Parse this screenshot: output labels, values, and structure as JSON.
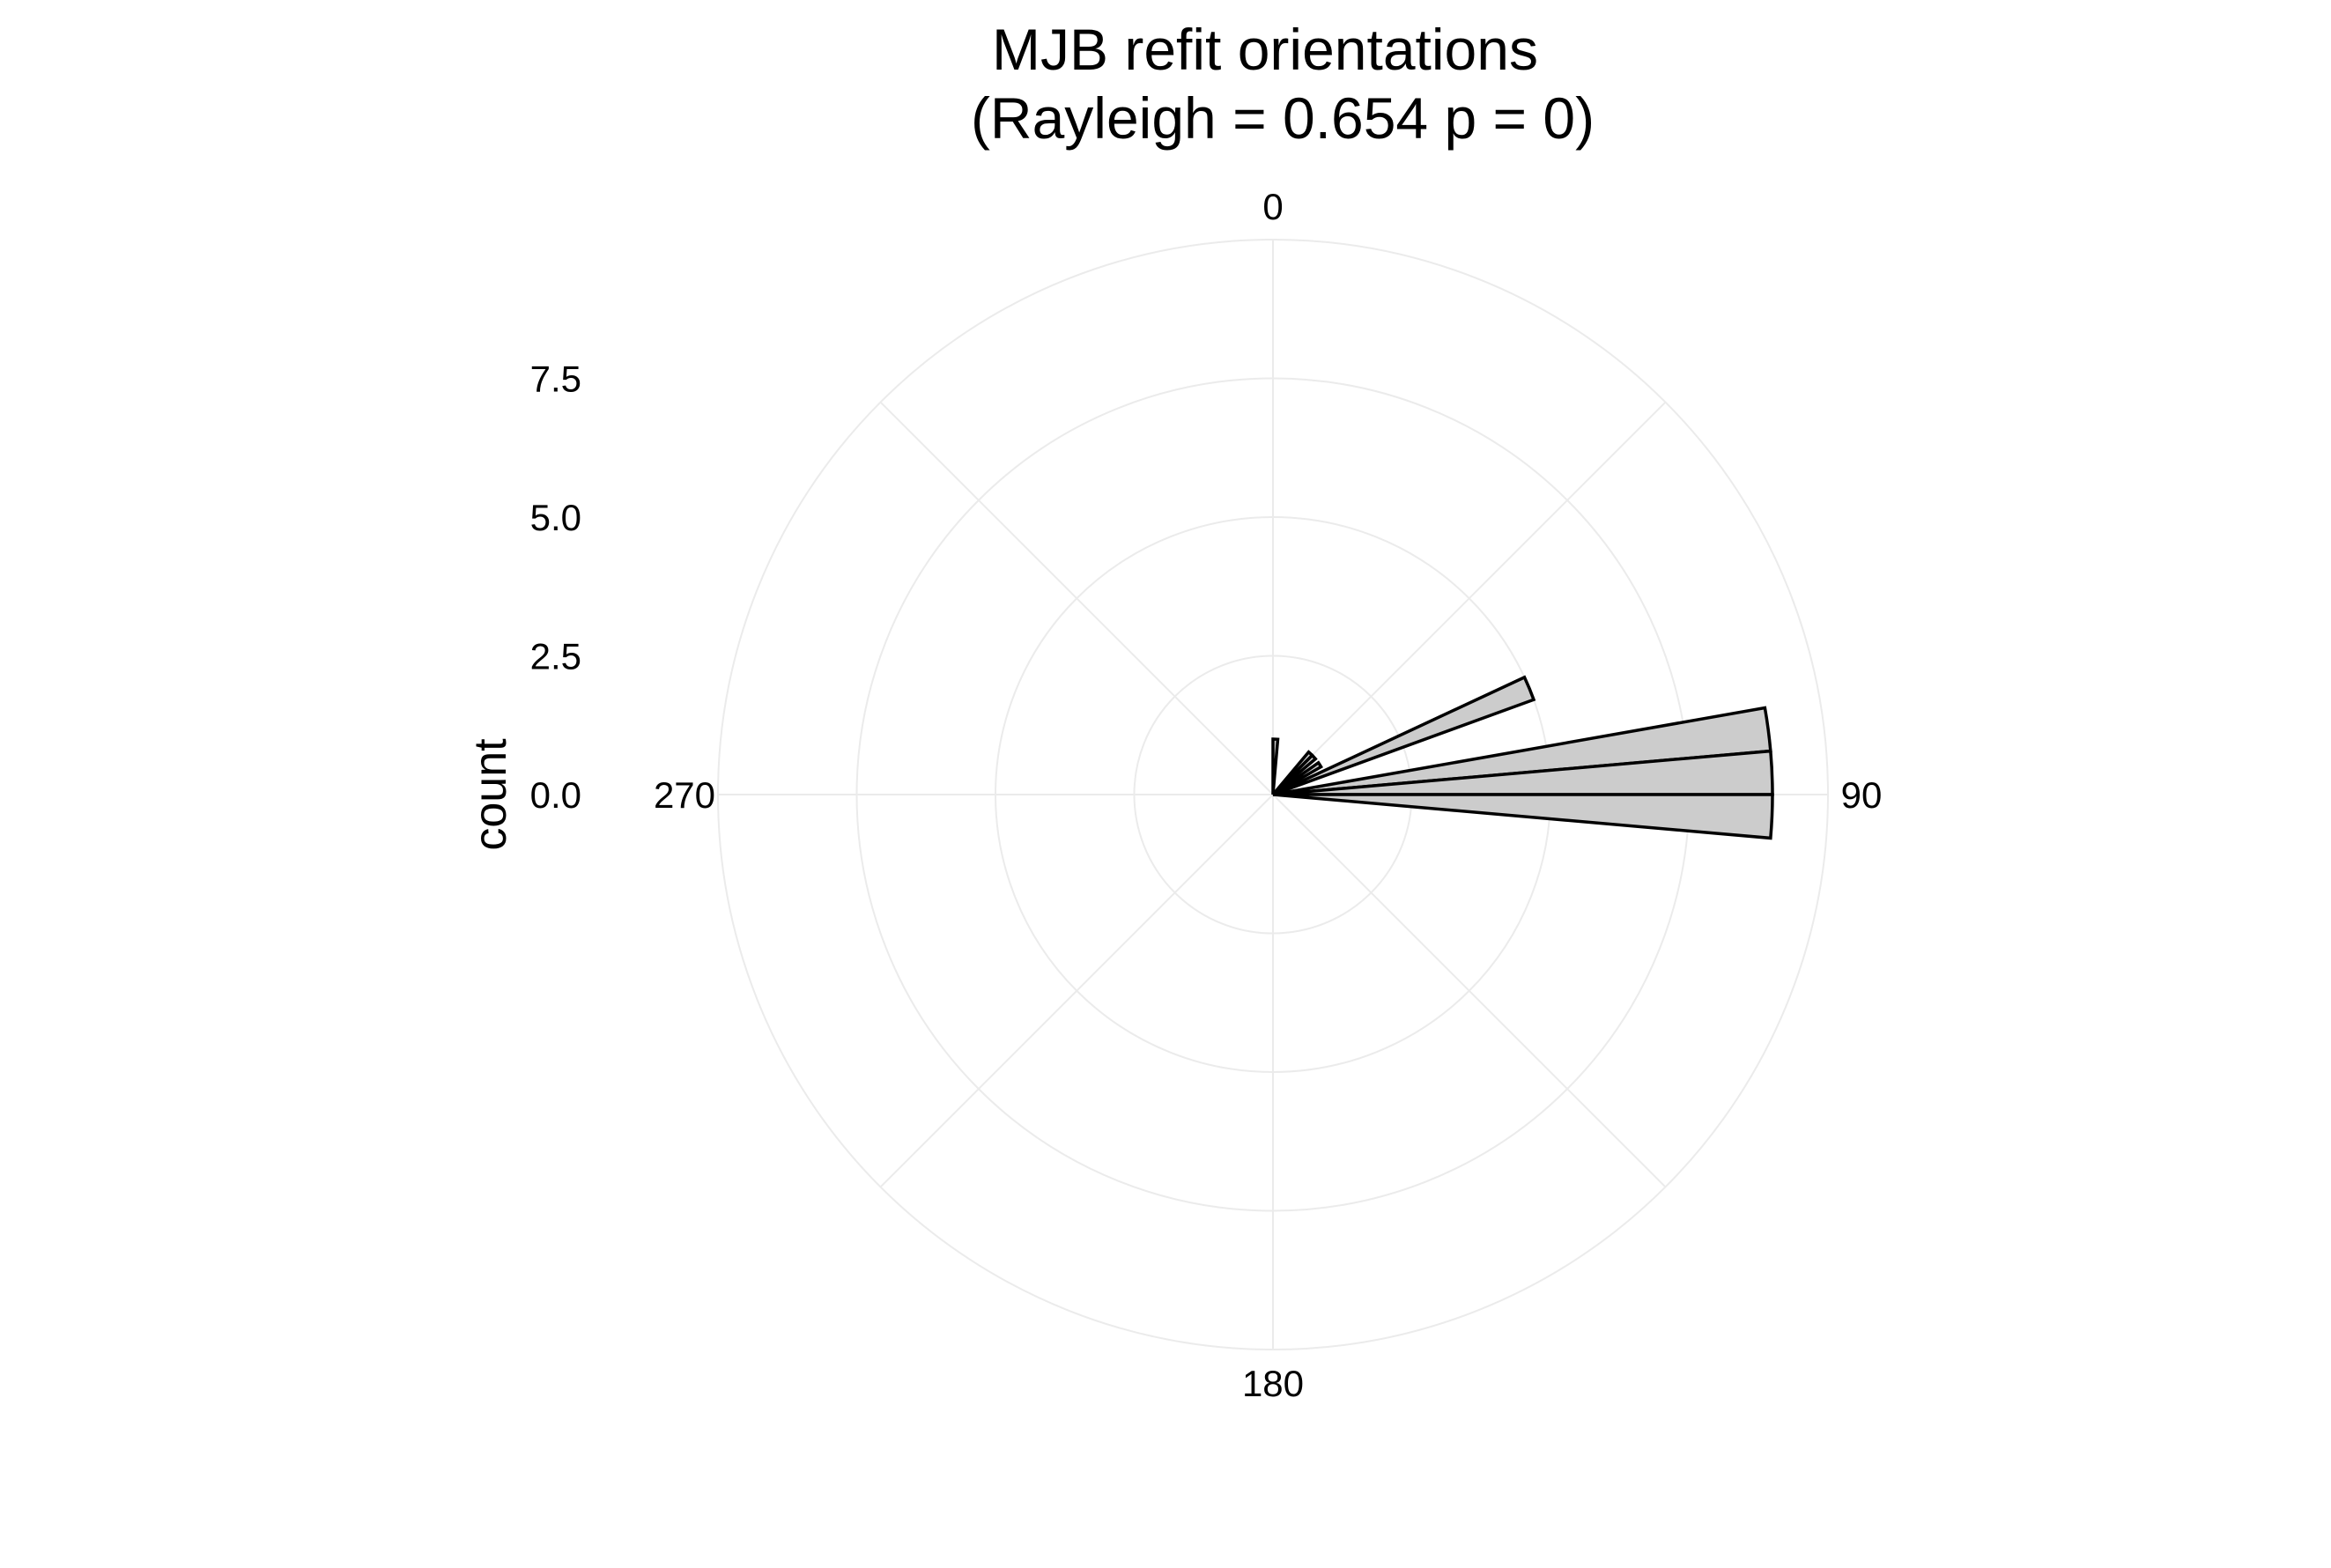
{
  "chart_data": {
    "type": "polar-histogram",
    "title_line1": "MJB refit orientations",
    "title_line2": "(Rayleigh = 0.654 p = 0)",
    "ylabel": "count",
    "radial_ticks": [
      "0.0",
      "2.5",
      "5.0",
      "7.5"
    ],
    "radial_tick_values": [
      0,
      2.5,
      5,
      7.5
    ],
    "radial_range": [
      0,
      10
    ],
    "angle_ticks": [
      "0",
      "90",
      "180",
      "270"
    ],
    "angle_tick_values": [
      0,
      90,
      180,
      270
    ],
    "grid": true,
    "bar_fill": "#cccccc",
    "bar_outline": "#000000",
    "bins": [
      {
        "start": 0,
        "end": 5,
        "count": 1
      },
      {
        "start": 5,
        "end": 10,
        "count": 0
      },
      {
        "start": 10,
        "end": 15,
        "count": 0
      },
      {
        "start": 15,
        "end": 20,
        "count": 0
      },
      {
        "start": 20,
        "end": 25,
        "count": 0
      },
      {
        "start": 25,
        "end": 30,
        "count": 0
      },
      {
        "start": 30,
        "end": 35,
        "count": 0
      },
      {
        "start": 35,
        "end": 40,
        "count": 0
      },
      {
        "start": 40,
        "end": 45,
        "count": 1
      },
      {
        "start": 45,
        "end": 50,
        "count": 1
      },
      {
        "start": 50,
        "end": 55,
        "count": 0
      },
      {
        "start": 55,
        "end": 60,
        "count": 1
      },
      {
        "start": 60,
        "end": 65,
        "count": 0
      },
      {
        "start": 65,
        "end": 70,
        "count": 5
      },
      {
        "start": 70,
        "end": 75,
        "count": 0
      },
      {
        "start": 75,
        "end": 80,
        "count": 0
      },
      {
        "start": 80,
        "end": 85,
        "count": 9
      },
      {
        "start": 85,
        "end": 90,
        "count": 9
      },
      {
        "start": 90,
        "end": 95,
        "count": 9
      }
    ]
  }
}
